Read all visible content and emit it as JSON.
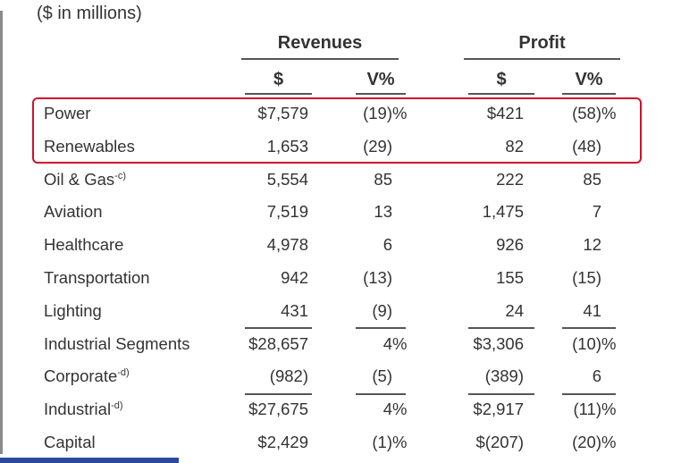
{
  "units": "($ in millions)",
  "groups": {
    "revenues": "Revenues",
    "profit": "Profit"
  },
  "subheaders": {
    "rev_dollar": "$",
    "rev_v": "V%",
    "profit_dollar": "$",
    "profit_v": "V%"
  },
  "highlight_color": "#d0112b",
  "rows": [
    {
      "label": "Power",
      "note": "",
      "rev": "$7,579",
      "rev_v": "(19)",
      "rev_v_pct": "%",
      "profit": "$421",
      "profit_v": "(58)",
      "profit_v_pct": "%"
    },
    {
      "label": "Renewables",
      "note": "",
      "rev": "1,653",
      "rev_v": "(29)",
      "rev_v_pct": "",
      "profit": "82",
      "profit_v": "(48)",
      "profit_v_pct": ""
    },
    {
      "label": "Oil & Gas",
      "note": "-c)",
      "rev": "5,554",
      "rev_v": "85",
      "rev_v_pct": "",
      "profit": "222",
      "profit_v": "85",
      "profit_v_pct": ""
    },
    {
      "label": "Aviation",
      "note": "",
      "rev": "7,519",
      "rev_v": "13",
      "rev_v_pct": "",
      "profit": "1,475",
      "profit_v": "7",
      "profit_v_pct": ""
    },
    {
      "label": "Healthcare",
      "note": "",
      "rev": "4,978",
      "rev_v": "6",
      "rev_v_pct": "",
      "profit": "926",
      "profit_v": "12",
      "profit_v_pct": ""
    },
    {
      "label": "Transportation",
      "note": "",
      "rev": "942",
      "rev_v": "(13)",
      "rev_v_pct": "",
      "profit": "155",
      "profit_v": "(15)",
      "profit_v_pct": ""
    },
    {
      "label": "Lighting",
      "note": "",
      "rev": "431",
      "rev_v": "(9)",
      "rev_v_pct": "",
      "profit": "24",
      "profit_v": "41",
      "profit_v_pct": ""
    },
    {
      "label": "Industrial Segments",
      "note": "",
      "rev": "$28,657",
      "rev_v": "4",
      "rev_v_pct": "%",
      "profit": "$3,306",
      "profit_v": "(10)",
      "profit_v_pct": "%"
    },
    {
      "label": "Corporate",
      "note": "-d)",
      "rev": "(982)",
      "rev_v": "(5)",
      "rev_v_pct": "",
      "profit": "(389)",
      "profit_v": "6",
      "profit_v_pct": ""
    },
    {
      "label": "Industrial",
      "note": "-d)",
      "rev": "$27,675",
      "rev_v": "4",
      "rev_v_pct": "%",
      "profit": "$2,917",
      "profit_v": "(11)",
      "profit_v_pct": "%"
    },
    {
      "label": "Capital",
      "note": "",
      "rev": "$2,429",
      "rev_v": "(1)",
      "rev_v_pct": "%",
      "profit": "$(207)",
      "profit_v": "(20)",
      "profit_v_pct": "%"
    }
  ]
}
